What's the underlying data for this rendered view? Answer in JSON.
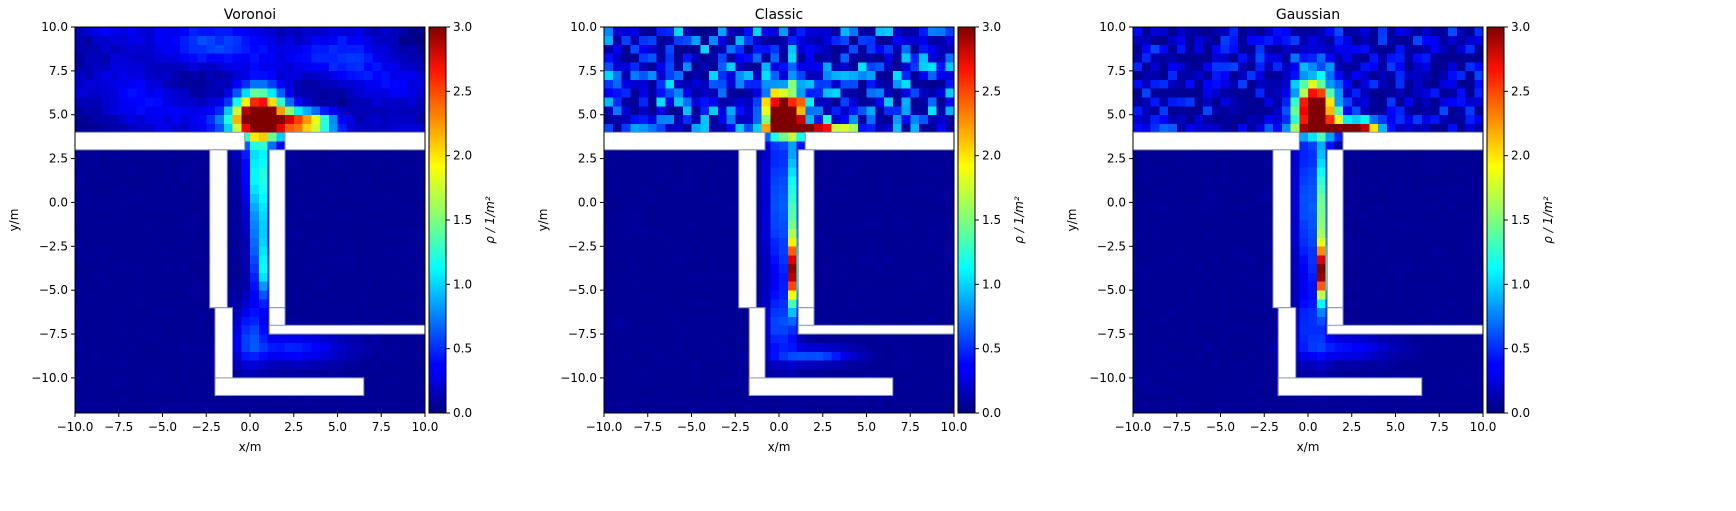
{
  "figure": {
    "colorbar": {
      "label": "ρ / 1/m²",
      "vmin": 0,
      "vmax": 3,
      "ticks": [
        "0.0",
        "0.5",
        "1.0",
        "1.5",
        "2.0",
        "2.5",
        "3.0"
      ],
      "colormap": "jet"
    }
  },
  "chart_data": [
    {
      "type": "heatmap",
      "title": "Voronoi",
      "xlabel": "x/m",
      "ylabel": "y/m",
      "xlim": [
        -10,
        10
      ],
      "ylim": [
        -12,
        10
      ],
      "xticks": [
        "−10.0",
        "−7.5",
        "−5.0",
        "−2.5",
        "0.0",
        "2.5",
        "5.0",
        "7.5",
        "10.0"
      ],
      "yticks": [
        "−10.0",
        "−7.5",
        "−5.0",
        "−2.5",
        "0.0",
        "2.5",
        "5.0",
        "7.5",
        "10.0"
      ],
      "style": "smooth",
      "background_density": 0.05,
      "upper_noise": 0.28,
      "hotspots": [
        {
          "x": 0.5,
          "y": 5.0,
          "sx": 0.9,
          "sy": 0.9,
          "v": 3.2
        },
        {
          "x": 2.2,
          "y": 4.6,
          "sx": 1.4,
          "sy": 0.5,
          "v": 1.7
        },
        {
          "x": 3.5,
          "y": 4.5,
          "sx": 1.0,
          "sy": 0.4,
          "v": 0.9
        },
        {
          "x": -0.8,
          "y": 4.6,
          "sx": 1.2,
          "sy": 0.5,
          "v": 0.5
        },
        {
          "x": 0.5,
          "y": 2.0,
          "sx": 0.5,
          "sy": 1.5,
          "v": 0.9
        },
        {
          "x": 0.6,
          "y": -1.5,
          "sx": 0.4,
          "sy": 2.5,
          "v": 0.9
        },
        {
          "x": 0.9,
          "y": -4.0,
          "sx": 0.3,
          "sy": 1.0,
          "v": 0.6
        },
        {
          "x": 0.0,
          "y": -7.5,
          "sx": 0.6,
          "sy": 1.2,
          "v": 0.45
        },
        {
          "x": 2.5,
          "y": -8.3,
          "sx": 2.0,
          "sy": 0.6,
          "v": 0.4
        },
        {
          "x": -3.0,
          "y": 8.8,
          "sx": 1.5,
          "sy": 0.8,
          "v": 0.35
        },
        {
          "x": 4.5,
          "y": 8.5,
          "sx": 1.5,
          "sy": 1.0,
          "v": 0.25
        }
      ],
      "obstacles": [
        {
          "x0": -10,
          "x1": -0.3,
          "y0": 3.0,
          "y1": 4.0
        },
        {
          "x0": 2.0,
          "x1": 10,
          "y0": 3.0,
          "y1": 4.0
        },
        {
          "x0": -2.3,
          "x1": -1.3,
          "y0": -6.0,
          "y1": 3.0
        },
        {
          "x0": -2.0,
          "x1": -1.0,
          "y0": -11.0,
          "y1": -6.0
        },
        {
          "x0": -2.0,
          "x1": 6.5,
          "y0": -11.0,
          "y1": -10.0
        },
        {
          "x0": 1.1,
          "x1": 2.0,
          "y0": -6.0,
          "y1": 3.0
        },
        {
          "x0": 1.1,
          "x1": 2.0,
          "y0": -7.5,
          "y1": -6.0
        },
        {
          "x0": 1.1,
          "x1": 10,
          "y0": -7.5,
          "y1": -7.0
        }
      ]
    },
    {
      "type": "heatmap",
      "title": "Classic",
      "xlabel": "x/m",
      "ylabel": "y/m",
      "xlim": [
        -10,
        10
      ],
      "ylim": [
        -12,
        10
      ],
      "xticks": [
        "−10.0",
        "−7.5",
        "−5.0",
        "−2.5",
        "0.0",
        "2.5",
        "5.0",
        "7.5",
        "10.0"
      ],
      "yticks": [
        "−10.0",
        "−7.5",
        "−5.0",
        "−2.5",
        "0.0",
        "2.5",
        "5.0",
        "7.5",
        "10.0"
      ],
      "style": "noisy",
      "background_density": 0.05,
      "upper_noise": 1.0,
      "hotspots": [
        {
          "x": 0.3,
          "y": 5.2,
          "sx": 0.8,
          "sy": 0.8,
          "v": 3.3
        },
        {
          "x": 1.5,
          "y": 4.2,
          "sx": 1.6,
          "sy": 0.25,
          "v": 3.0
        },
        {
          "x": 0.9,
          "y": -4.0,
          "sx": 0.25,
          "sy": 1.2,
          "v": 2.4
        },
        {
          "x": 0.9,
          "y": -1.0,
          "sx": 0.25,
          "sy": 3.5,
          "v": 1.3
        },
        {
          "x": 0.0,
          "y": 0.0,
          "sx": 0.5,
          "sy": 3.5,
          "v": 0.6
        },
        {
          "x": 0.0,
          "y": -7.0,
          "sx": 0.5,
          "sy": 1.2,
          "v": 0.5
        },
        {
          "x": 2.0,
          "y": -8.7,
          "sx": 1.5,
          "sy": 0.3,
          "v": 0.55
        }
      ],
      "obstacles": [
        {
          "x0": -10,
          "x1": -0.8,
          "y0": 3.0,
          "y1": 4.0
        },
        {
          "x0": 1.5,
          "x1": 10,
          "y0": 3.0,
          "y1": 4.0
        },
        {
          "x0": -2.3,
          "x1": -1.3,
          "y0": -6.0,
          "y1": 3.0
        },
        {
          "x0": -1.7,
          "x1": -0.8,
          "y0": -11.0,
          "y1": -6.0
        },
        {
          "x0": -1.7,
          "x1": 6.5,
          "y0": -11.0,
          "y1": -10.0
        },
        {
          "x0": 1.1,
          "x1": 2.0,
          "y0": -6.0,
          "y1": 3.0
        },
        {
          "x0": 1.1,
          "x1": 2.0,
          "y0": -7.5,
          "y1": -6.0
        },
        {
          "x0": 1.1,
          "x1": 10,
          "y0": -7.5,
          "y1": -7.0
        }
      ]
    },
    {
      "type": "heatmap",
      "title": "Gaussian",
      "xlabel": "x/m",
      "ylabel": "y/m",
      "xlim": [
        -10,
        10
      ],
      "ylim": [
        -12,
        10
      ],
      "xticks": [
        "−10.0",
        "−7.5",
        "−5.0",
        "−2.5",
        "0.0",
        "2.5",
        "5.0",
        "7.5",
        "10.0"
      ],
      "yticks": [
        "−10.0",
        "−7.5",
        "−5.0",
        "−2.5",
        "0.0",
        "2.5",
        "5.0",
        "7.5",
        "10.0"
      ],
      "style": "medium",
      "background_density": 0.05,
      "upper_noise": 0.55,
      "hotspots": [
        {
          "x": 0.4,
          "y": 5.3,
          "sx": 0.8,
          "sy": 0.8,
          "v": 3.3
        },
        {
          "x": 1.5,
          "y": 4.3,
          "sx": 1.5,
          "sy": 0.25,
          "v": 3.0
        },
        {
          "x": 3.0,
          "y": 4.4,
          "sx": 0.6,
          "sy": 0.25,
          "v": 1.4
        },
        {
          "x": 0.9,
          "y": -4.0,
          "sx": 0.25,
          "sy": 1.0,
          "v": 2.4
        },
        {
          "x": 0.9,
          "y": -1.0,
          "sx": 0.25,
          "sy": 3.5,
          "v": 1.5
        },
        {
          "x": 0.0,
          "y": 0.0,
          "sx": 0.5,
          "sy": 3.5,
          "v": 0.6
        },
        {
          "x": 0.0,
          "y": -7.0,
          "sx": 0.5,
          "sy": 1.2,
          "v": 0.4
        },
        {
          "x": 2.0,
          "y": -8.3,
          "sx": 1.8,
          "sy": 0.5,
          "v": 0.35
        },
        {
          "x": -8.5,
          "y": 4.5,
          "sx": 0.5,
          "sy": 0.2,
          "v": 0.8
        },
        {
          "x": 0.3,
          "y": 7.2,
          "sx": 0.8,
          "sy": 1.0,
          "v": 0.6
        }
      ],
      "obstacles": [
        {
          "x0": -10,
          "x1": -0.5,
          "y0": 3.0,
          "y1": 4.0
        },
        {
          "x0": 2.0,
          "x1": 10,
          "y0": 3.0,
          "y1": 4.0
        },
        {
          "x0": -2.0,
          "x1": -1.0,
          "y0": -6.0,
          "y1": 3.0
        },
        {
          "x0": -1.7,
          "x1": -0.7,
          "y0": -11.0,
          "y1": -6.0
        },
        {
          "x0": -1.7,
          "x1": 6.5,
          "y0": -11.0,
          "y1": -10.0
        },
        {
          "x0": 1.1,
          "x1": 2.0,
          "y0": -6.0,
          "y1": 3.0
        },
        {
          "x0": 1.1,
          "x1": 2.0,
          "y0": -7.5,
          "y1": -6.0
        },
        {
          "x0": 1.1,
          "x1": 10,
          "y0": -7.5,
          "y1": -7.0
        }
      ]
    }
  ]
}
